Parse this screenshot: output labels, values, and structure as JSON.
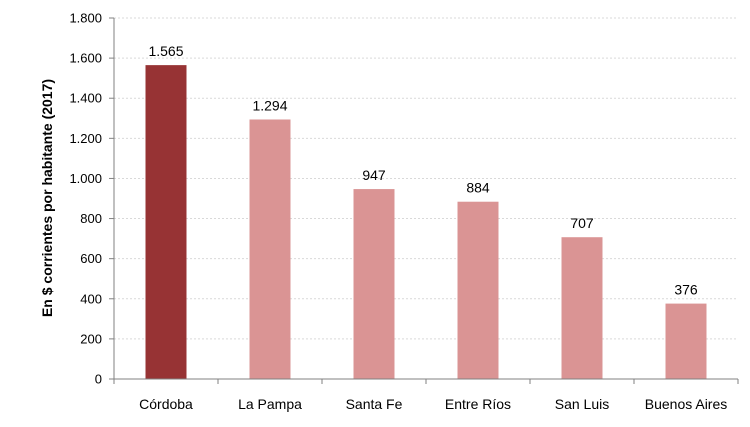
{
  "chart_data": {
    "type": "bar",
    "title": "",
    "xlabel": "",
    "ylabel": "En $ corrientes por habitante (2017)",
    "categories": [
      "Córdoba",
      "La Pampa",
      "Santa Fe",
      "Entre Ríos",
      "San Luis",
      "Buenos Aires"
    ],
    "values": [
      1565,
      1294,
      947,
      884,
      707,
      376
    ],
    "data_labels": [
      "1.565",
      "1.294",
      "947",
      "884",
      "707",
      "376"
    ],
    "ylim": [
      0,
      1800
    ],
    "yticks": [
      0,
      200,
      400,
      600,
      800,
      1000,
      1200,
      1400,
      1600,
      1800
    ],
    "ytick_labels": [
      "0",
      "200",
      "400",
      "600",
      "800",
      "1.000",
      "1.200",
      "1.400",
      "1.600",
      "1.800"
    ],
    "grid": true,
    "legend": "none",
    "colors": {
      "highlight": "#973334",
      "bar": "#DA9494",
      "grid": "#D9D9D9",
      "axis": "#808080"
    },
    "highlight_index": 0
  }
}
